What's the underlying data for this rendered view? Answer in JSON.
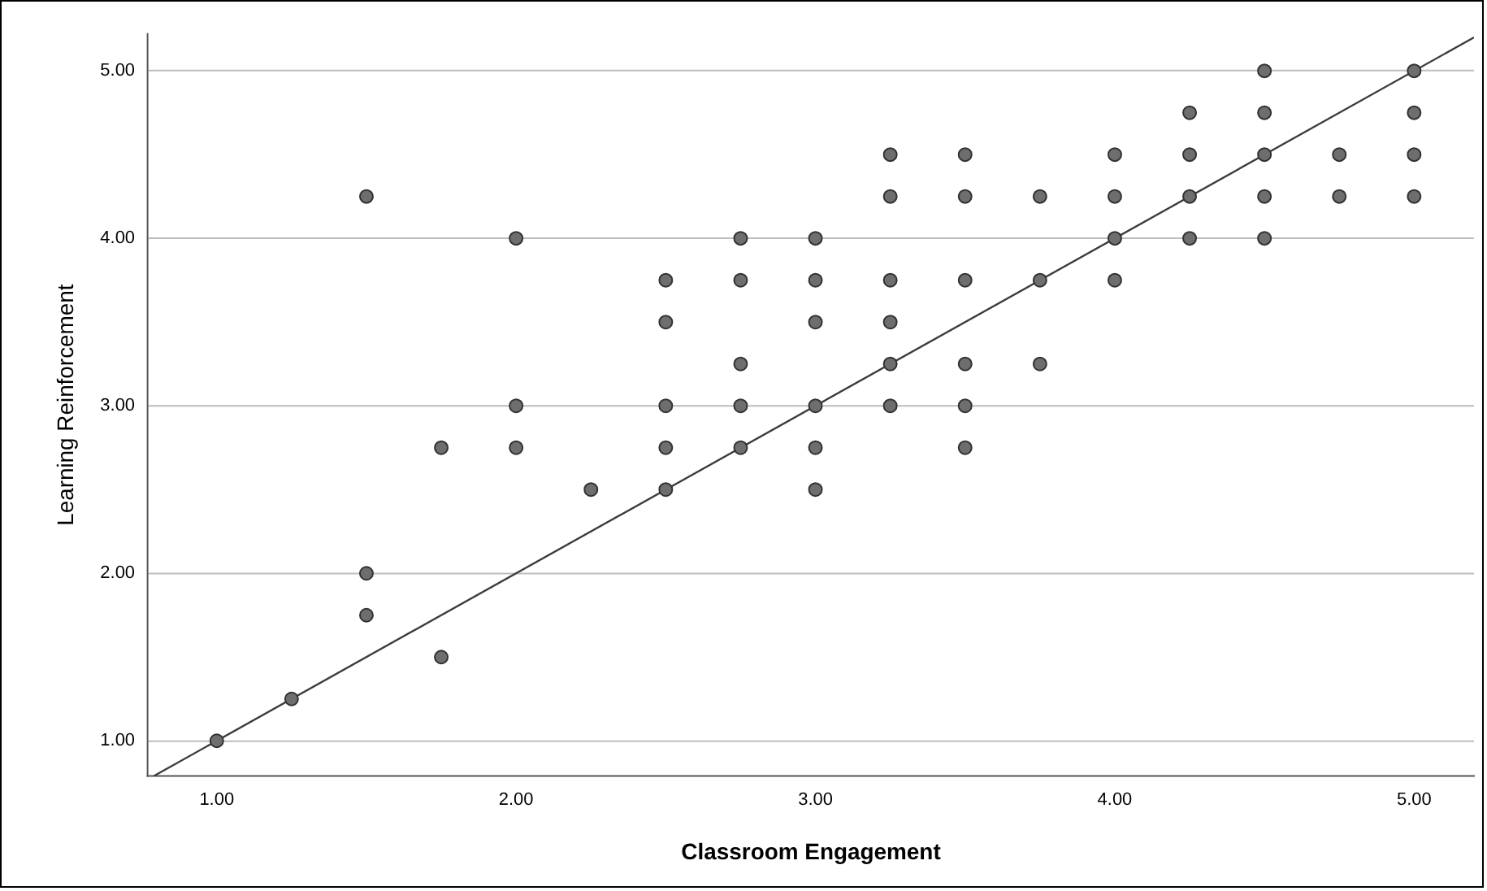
{
  "chart_data": {
    "type": "scatter",
    "xlabel": "Classroom Engagement",
    "ylabel": "Learning Reinforcement",
    "xlim": [
      0.77,
      5.2
    ],
    "ylim": [
      0.79,
      5.22
    ],
    "xticks": [
      {
        "value": 1,
        "label": "1.00"
      },
      {
        "value": 2,
        "label": "2.00"
      },
      {
        "value": 3,
        "label": "3.00"
      },
      {
        "value": 4,
        "label": "4.00"
      },
      {
        "value": 5,
        "label": "5.00"
      }
    ],
    "yticks": [
      {
        "value": 1,
        "label": "1.00"
      },
      {
        "value": 2,
        "label": "2.00"
      },
      {
        "value": 3,
        "label": "3.00"
      },
      {
        "value": 4,
        "label": "4.00"
      },
      {
        "value": 5,
        "label": "5.00"
      }
    ],
    "grid": "y",
    "legend": false,
    "marker": "circle",
    "series": [
      {
        "color": "#6e6e6e",
        "x": [
          1,
          1.25,
          1.5,
          1.5,
          1.5,
          1.75,
          1.75,
          2,
          2,
          2,
          2.25,
          2.5,
          2.5,
          2.5,
          2.5,
          2.5,
          2.75,
          2.75,
          2.75,
          2.75,
          2.75,
          3,
          3,
          3,
          3,
          3,
          3,
          3.25,
          3.25,
          3.25,
          3.25,
          3.25,
          3.25,
          3.5,
          3.5,
          3.5,
          3.5,
          3.5,
          3.5,
          3.75,
          3.75,
          3.75,
          4,
          4,
          4,
          4,
          4.25,
          4.25,
          4.25,
          4.25,
          4.5,
          4.5,
          4.5,
          4.5,
          4.5,
          4.75,
          4.75,
          5,
          5,
          5,
          5
        ],
        "values": [
          1,
          1.25,
          4.25,
          2,
          1.75,
          2.75,
          1.5,
          4,
          3,
          2.75,
          2.5,
          3.75,
          3.5,
          3,
          2.75,
          2.5,
          4,
          3.75,
          3.25,
          3,
          2.75,
          4,
          3.75,
          3.5,
          3,
          2.75,
          2.5,
          4.5,
          4.25,
          3.75,
          3.5,
          3.25,
          3,
          4.5,
          4.25,
          3.75,
          3.25,
          3,
          2.75,
          4.25,
          3.75,
          3.25,
          4.5,
          4.25,
          4,
          3.75,
          4.75,
          4.5,
          4.25,
          4,
          5,
          4.75,
          4.5,
          4.25,
          4,
          4.5,
          4.25,
          5,
          4.75,
          4.5,
          4.25
        ]
      },
      {
        "type": "line",
        "color": "#3c3c3c",
        "marker": "none",
        "x": [
          0.79,
          5.2
        ],
        "values": [
          0.79,
          5.2
        ]
      }
    ]
  }
}
